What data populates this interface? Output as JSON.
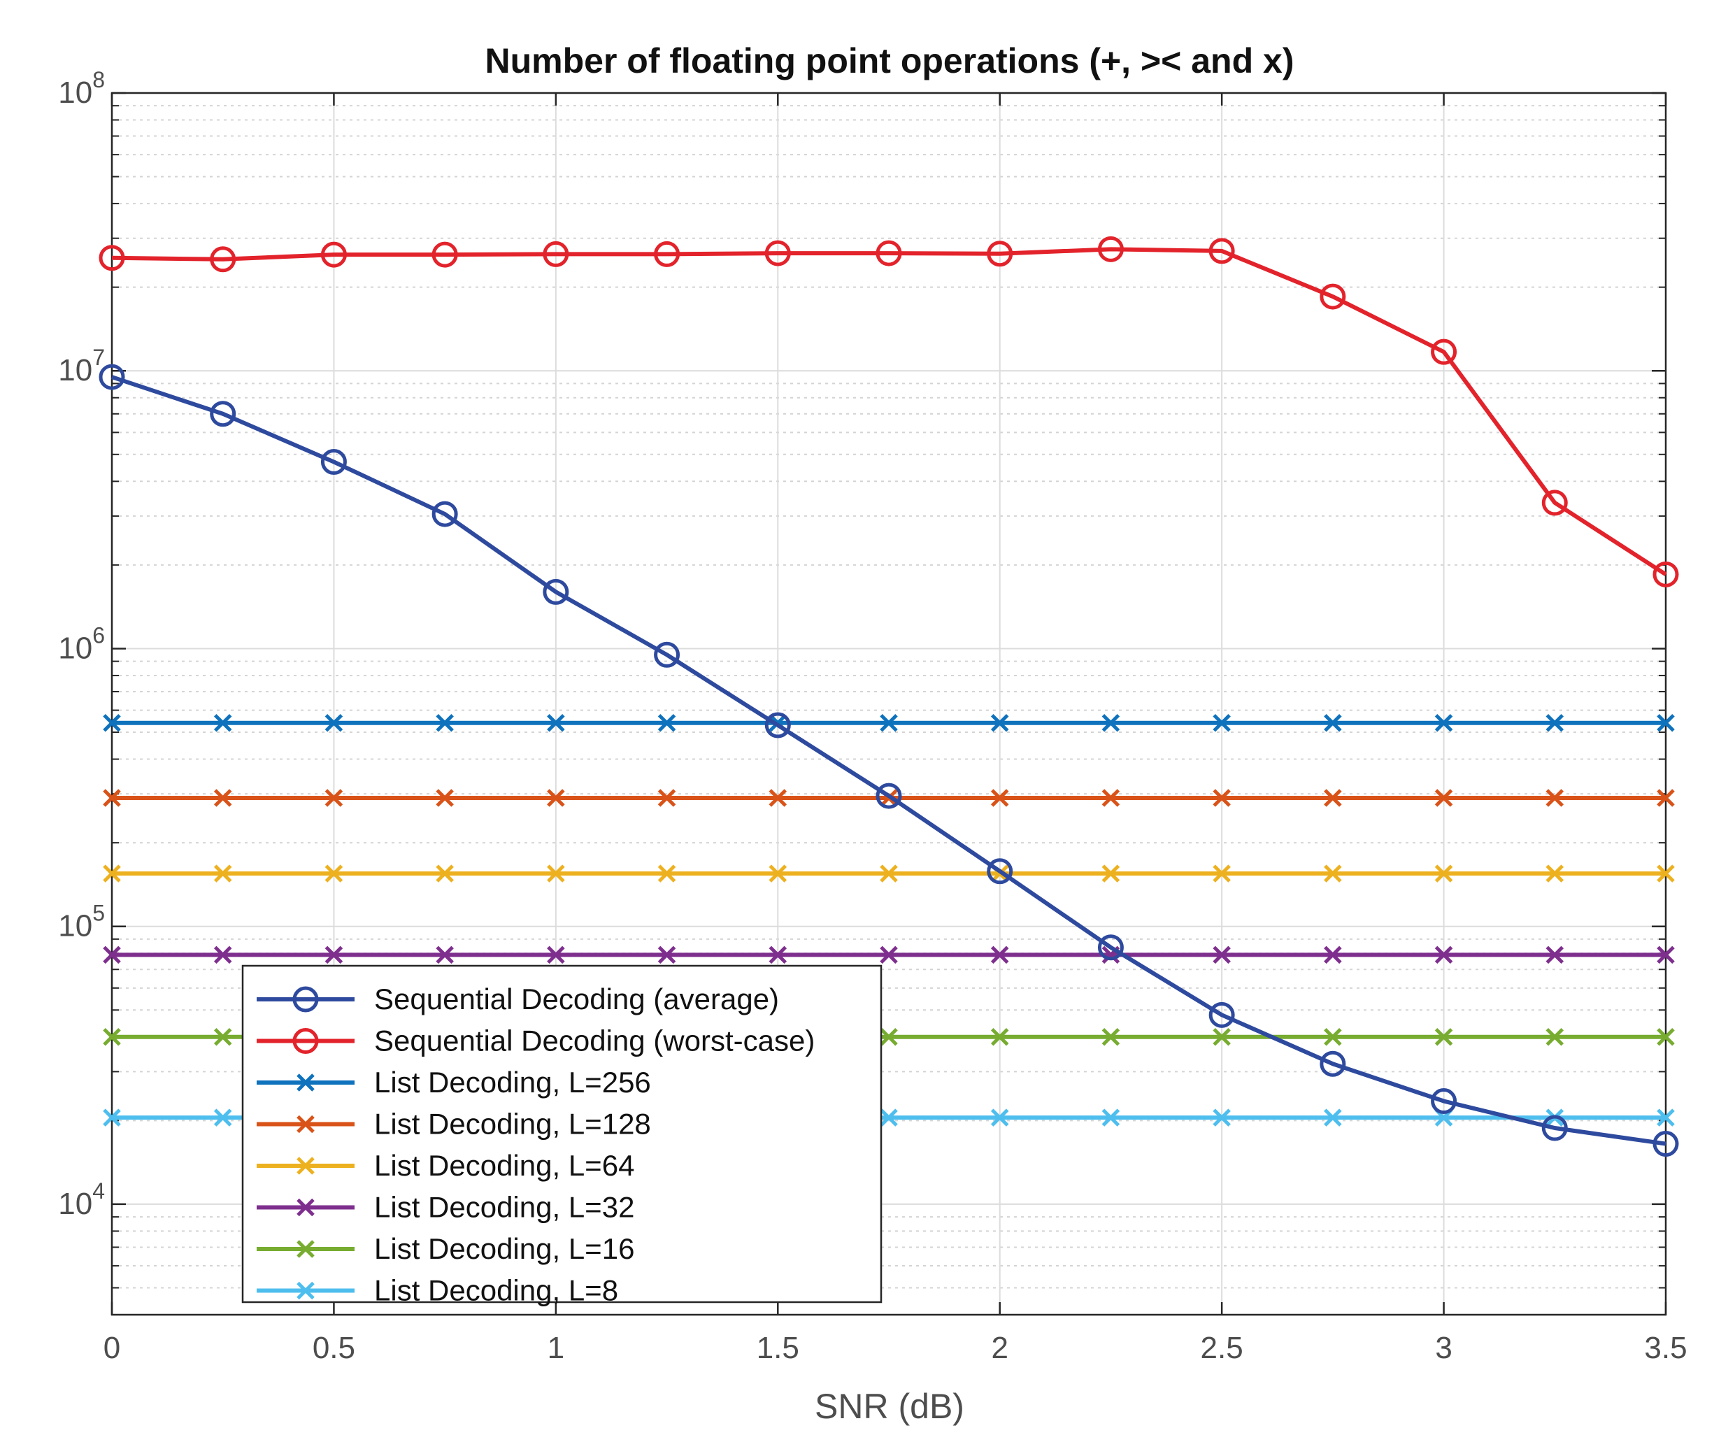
{
  "chart_data": {
    "type": "line",
    "title": "Number of floating point operations (+, >< and x)",
    "xlabel": "SNR (dB)",
    "ylabel": "",
    "xlim": [
      0,
      3.5
    ],
    "ylim": [
      4000,
      100000000
    ],
    "yscale": "log",
    "grid": true,
    "minor_grid": true,
    "legend_position": "bottom-left",
    "x_ticks": [
      "0",
      "0.5",
      "1",
      "1.5",
      "2",
      "2.5",
      "3",
      "3.5"
    ],
    "x_tick_values": [
      0,
      0.5,
      1,
      1.5,
      2,
      2.5,
      3,
      3.5
    ],
    "y_tick_values": [
      10000,
      100000,
      1000000,
      10000000,
      100000000
    ],
    "y_ticks": [
      {
        "base": "10",
        "exp": "4"
      },
      {
        "base": "10",
        "exp": "5"
      },
      {
        "base": "10",
        "exp": "6"
      },
      {
        "base": "10",
        "exp": "7"
      },
      {
        "base": "10",
        "exp": "8"
      }
    ],
    "x": [
      0,
      0.25,
      0.5,
      0.75,
      1,
      1.25,
      1.5,
      1.75,
      2,
      2.25,
      2.5,
      2.75,
      3,
      3.25,
      3.5
    ],
    "series": [
      {
        "name": "Sequential Decoding (average)",
        "color": "#2e4a9e",
        "marker": "o",
        "values": [
          9500000,
          7000000,
          4700000,
          3050000,
          1600000,
          950000,
          530000,
          295000,
          158000,
          84000,
          48000,
          32000,
          23500,
          18800,
          16500
        ]
      },
      {
        "name": "Sequential Decoding (worst-case)",
        "color": "#e3232b",
        "marker": "o",
        "values": [
          25500000,
          25200000,
          26200000,
          26200000,
          26300000,
          26300000,
          26500000,
          26500000,
          26400000,
          27400000,
          27000000,
          18500000,
          11700000,
          3350000,
          1850000
        ]
      },
      {
        "name": "List Decoding, L=256",
        "color": "#0e72bd",
        "marker": "x",
        "values": [
          540000,
          540000,
          540000,
          540000,
          540000,
          540000,
          540000,
          540000,
          540000,
          540000,
          540000,
          540000,
          540000,
          540000,
          540000
        ]
      },
      {
        "name": "List Decoding, L=128",
        "color": "#d95319",
        "marker": "x",
        "values": [
          290000,
          290000,
          290000,
          290000,
          290000,
          290000,
          290000,
          290000,
          290000,
          290000,
          290000,
          290000,
          290000,
          290000,
          290000
        ]
      },
      {
        "name": "List Decoding, L=64",
        "color": "#edb120",
        "marker": "x",
        "values": [
          155000,
          155000,
          155000,
          155000,
          155000,
          155000,
          155000,
          155000,
          155000,
          155000,
          155000,
          155000,
          155000,
          155000,
          155000
        ]
      },
      {
        "name": "List Decoding, L=32",
        "color": "#7e2f8e",
        "marker": "x",
        "values": [
          79000,
          79000,
          79000,
          79000,
          79000,
          79000,
          79000,
          79000,
          79000,
          79000,
          79000,
          79000,
          79000,
          79000,
          79000
        ]
      },
      {
        "name": "List Decoding, L=16",
        "color": "#77ac30",
        "marker": "x",
        "values": [
          40000,
          40000,
          40000,
          40000,
          40000,
          40000,
          40000,
          40000,
          40000,
          40000,
          40000,
          40000,
          40000,
          40000,
          40000
        ]
      },
      {
        "name": "List Decoding, L=8",
        "color": "#4dbeee",
        "marker": "x",
        "values": [
          20500,
          20500,
          20500,
          20500,
          20500,
          20500,
          20500,
          20500,
          20500,
          20500,
          20500,
          20500,
          20500,
          20500,
          20500
        ]
      }
    ]
  }
}
